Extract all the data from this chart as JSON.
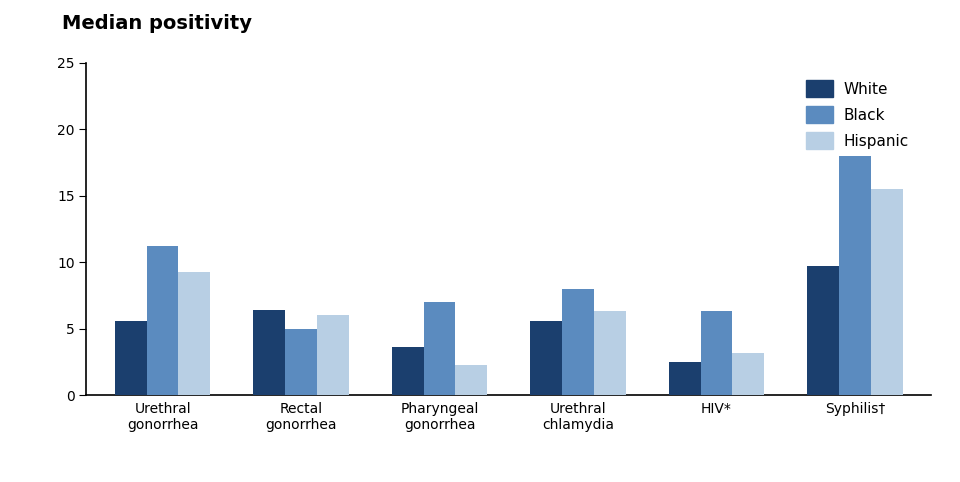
{
  "categories": [
    "Urethral\ngonorrhea",
    "Rectal\ngonorrhea",
    "Pharyngeal\ngonorrhea",
    "Urethral\nchlamydia",
    "HIV*",
    "Syphilis†"
  ],
  "series": {
    "White": [
      5.6,
      6.4,
      3.6,
      5.6,
      2.5,
      9.7
    ],
    "Black": [
      11.2,
      5.0,
      7.0,
      8.0,
      6.3,
      18.0
    ],
    "Hispanic": [
      9.3,
      6.0,
      2.3,
      6.3,
      3.2,
      15.5
    ]
  },
  "colors": {
    "White": "#1b3f6e",
    "Black": "#5b8bbf",
    "Hispanic": "#b8cfe4"
  },
  "legend_labels": [
    "White",
    "Black",
    "Hispanic"
  ],
  "title": "Median positivity",
  "ylim": [
    0,
    25
  ],
  "yticks": [
    0,
    5,
    10,
    15,
    20,
    25
  ],
  "bar_width": 0.23,
  "background_color": "#ffffff",
  "title_fontsize": 14,
  "tick_fontsize": 10,
  "legend_fontsize": 11
}
